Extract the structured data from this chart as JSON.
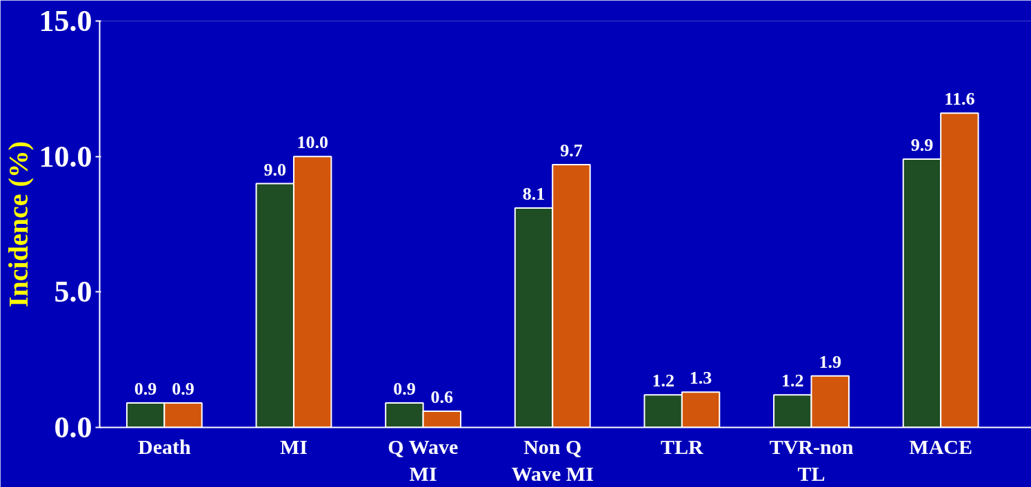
{
  "chart_data": {
    "type": "bar",
    "ylabel": "Incidence (%)",
    "categories": [
      "Death",
      "MI",
      "Q Wave\nMI",
      "Non Q\nWave MI",
      "TLR",
      "TVR-non\nTL",
      "MACE"
    ],
    "series": [
      {
        "color": "#1f4d24",
        "values": [
          0.9,
          9.0,
          0.9,
          8.1,
          1.2,
          1.2,
          9.9
        ],
        "value_labels": [
          "0.9",
          "9.0",
          "0.9",
          "8.1",
          "1.2",
          "1.2",
          "9.9"
        ]
      },
      {
        "color": "#d2560c",
        "values": [
          0.9,
          10.0,
          0.6,
          9.7,
          1.3,
          1.9,
          11.6
        ],
        "value_labels": [
          "0.9",
          "10.0",
          "0.6",
          "9.7",
          "1.3",
          "1.9",
          "11.6"
        ]
      }
    ],
    "ylim": [
      0,
      15
    ],
    "yticks": [
      {
        "value": 0,
        "label": "0.0"
      },
      {
        "value": 5,
        "label": "5.0"
      },
      {
        "value": 10,
        "label": "10.0"
      },
      {
        "value": 15,
        "label": "15.0"
      }
    ],
    "grid": false
  }
}
